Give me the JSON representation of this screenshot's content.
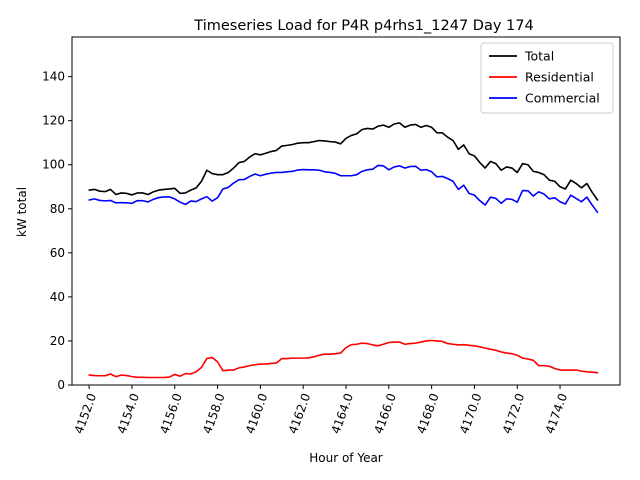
{
  "chart_data": {
    "type": "line",
    "title": "Timeseries Load for P4R p4rhs1_1247  Day 174",
    "xlabel": "Hour of Year",
    "ylabel": "kW total",
    "xlim": [
      4151.2,
      4176.8
    ],
    "ylim": [
      0,
      158
    ],
    "xticks": [
      4152,
      4154,
      4156,
      4158,
      4160,
      4162,
      4164,
      4166,
      4168,
      4170,
      4172,
      4174
    ],
    "xtick_labels": [
      "4152.0",
      "4154.0",
      "4156.0",
      "4158.0",
      "4160.0",
      "4162.0",
      "4164.0",
      "4166.0",
      "4168.0",
      "4170.0",
      "4172.0",
      "4174.0"
    ],
    "yticks": [
      0,
      20,
      40,
      60,
      80,
      100,
      120,
      140
    ],
    "ytick_labels": [
      "0",
      "20",
      "40",
      "60",
      "80",
      "100",
      "120",
      "140"
    ],
    "legend_position": "top-right",
    "grid": false,
    "x_start": 4152.0,
    "x_step": 0.25,
    "series": [
      {
        "name": "Total",
        "color": "#000000",
        "values": [
          88.5,
          88.8,
          88.0,
          87.8,
          88.8,
          86.5,
          87.2,
          87.0,
          86.3,
          87.2,
          87.2,
          86.5,
          87.7,
          88.5,
          88.8,
          89.0,
          89.3,
          87.0,
          87.2,
          88.5,
          89.5,
          92.5,
          97.5,
          96.0,
          95.5,
          95.5,
          96.5,
          98.5,
          101.0,
          101.5,
          103.5,
          105.0,
          104.5,
          105.2,
          106.0,
          106.5,
          108.5,
          108.8,
          109.2,
          109.8,
          110.0,
          110.0,
          110.5,
          111.0,
          110.8,
          110.5,
          110.3,
          109.5,
          112.0,
          113.3,
          114.0,
          116.0,
          116.5,
          116.2,
          117.5,
          118.0,
          117.0,
          118.5,
          119.0,
          117.0,
          118.0,
          118.3,
          117.0,
          117.8,
          117.0,
          114.5,
          114.5,
          112.5,
          111.0,
          107.0,
          109.0,
          105.0,
          104.0,
          101.0,
          98.5,
          101.5,
          100.5,
          97.5,
          99.0,
          98.5,
          96.5,
          100.5,
          100.0,
          97.0,
          96.5,
          95.5,
          93.0,
          92.5,
          90.0,
          89.0,
          93.0,
          91.5,
          89.5,
          91.5,
          87.5,
          84.0
        ]
      },
      {
        "name": "Residential",
        "color": "#ff0000",
        "values": [
          4.5,
          4.3,
          4.2,
          4.2,
          5.0,
          3.8,
          4.5,
          4.3,
          3.8,
          3.5,
          3.5,
          3.4,
          3.4,
          3.4,
          3.4,
          3.6,
          4.8,
          4.0,
          5.2,
          5.0,
          6.0,
          8.0,
          12.0,
          12.5,
          10.5,
          6.5,
          6.8,
          6.8,
          7.8,
          8.2,
          8.8,
          9.2,
          9.5,
          9.5,
          9.8,
          10.0,
          12.0,
          12.0,
          12.2,
          12.2,
          12.2,
          12.3,
          12.8,
          13.5,
          14.0,
          14.0,
          14.2,
          14.5,
          17.0,
          18.3,
          18.5,
          19.0,
          18.8,
          18.2,
          17.8,
          18.5,
          19.3,
          19.5,
          19.5,
          18.5,
          18.8,
          19.0,
          19.5,
          20.0,
          20.2,
          20.0,
          19.8,
          18.8,
          18.5,
          18.2,
          18.3,
          18.0,
          17.8,
          17.3,
          16.8,
          16.2,
          15.8,
          15.0,
          14.5,
          14.2,
          13.5,
          12.2,
          11.8,
          11.2,
          8.8,
          8.8,
          8.5,
          7.5,
          6.8,
          6.8,
          6.8,
          6.8,
          6.3,
          6.0,
          5.8,
          5.6
        ]
      },
      {
        "name": "Commercial",
        "color": "#0000ff",
        "values": [
          84.0,
          84.5,
          83.8,
          83.6,
          83.8,
          82.7,
          82.8,
          82.7,
          82.5,
          83.7,
          83.7,
          83.1,
          84.3,
          85.1,
          85.4,
          85.4,
          84.5,
          83.0,
          82.0,
          83.5,
          83.3,
          84.5,
          85.5,
          83.5,
          85.0,
          89.0,
          89.7,
          91.7,
          93.2,
          93.3,
          94.7,
          95.8,
          95.0,
          95.7,
          96.2,
          96.5,
          96.5,
          96.8,
          97.0,
          97.6,
          97.8,
          97.7,
          97.7,
          97.5,
          96.8,
          96.5,
          96.1,
          95.0,
          95.0,
          95.0,
          95.5,
          97.0,
          97.7,
          98.0,
          99.7,
          99.5,
          97.7,
          99.0,
          99.5,
          98.5,
          99.2,
          99.3,
          97.5,
          97.8,
          96.8,
          94.5,
          94.7,
          93.7,
          92.5,
          88.8,
          90.7,
          87.0,
          86.2,
          83.7,
          81.7,
          85.3,
          84.7,
          82.5,
          84.5,
          84.3,
          83.0,
          88.3,
          88.2,
          85.8,
          87.7,
          86.7,
          84.5,
          85.0,
          83.2,
          82.2,
          86.2,
          84.7,
          83.2,
          85.3,
          81.7,
          78.4
        ]
      }
    ]
  }
}
